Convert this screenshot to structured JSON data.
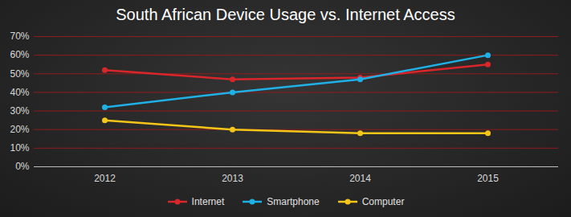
{
  "chart_data": {
    "type": "line",
    "title": "South African Device Usage vs. Internet Access",
    "categories": [
      "2012",
      "2013",
      "2014",
      "2015"
    ],
    "series": [
      {
        "name": "Internet",
        "color": "#d9262b",
        "marker": "circle",
        "values": [
          52,
          47,
          48,
          55
        ]
      },
      {
        "name": "Smartphone",
        "color": "#1fb1e6",
        "marker": "circle",
        "values": [
          32,
          40,
          47,
          60
        ]
      },
      {
        "name": "Computer",
        "color": "#f5c518",
        "marker": "circle",
        "values": [
          25,
          20,
          18,
          18
        ]
      }
    ],
    "ylim": [
      0,
      70
    ],
    "yticks": [
      {
        "value": 0,
        "label": "0%"
      },
      {
        "value": 10,
        "label": "10%"
      },
      {
        "value": 20,
        "label": "20%"
      },
      {
        "value": 30,
        "label": "30%"
      },
      {
        "value": 40,
        "label": "40%"
      },
      {
        "value": 50,
        "label": "50%"
      },
      {
        "value": 60,
        "label": "60%"
      },
      {
        "value": 70,
        "label": "70%"
      }
    ],
    "grid": true,
    "legend": "bottom"
  }
}
